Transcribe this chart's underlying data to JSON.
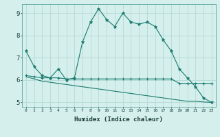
{
  "xlabel": "Humidex (Indice chaleur)",
  "x": [
    0,
    1,
    2,
    3,
    4,
    5,
    6,
    7,
    8,
    9,
    10,
    11,
    12,
    13,
    14,
    15,
    16,
    17,
    18,
    19,
    20,
    21,
    22,
    23
  ],
  "line1": [
    7.3,
    6.6,
    6.2,
    6.1,
    6.5,
    6.0,
    6.1,
    7.7,
    8.6,
    9.2,
    8.7,
    8.4,
    9.0,
    8.6,
    8.5,
    8.6,
    8.4,
    7.8,
    7.3,
    6.5,
    6.1,
    5.7,
    5.2,
    5.0
  ],
  "line2": [
    6.2,
    6.15,
    6.1,
    6.1,
    6.1,
    6.05,
    6.05,
    6.05,
    6.05,
    6.05,
    6.05,
    6.05,
    6.05,
    6.05,
    6.05,
    6.05,
    6.05,
    6.05,
    6.05,
    5.85,
    5.85,
    5.85,
    5.85,
    5.85
  ],
  "line3": [
    6.15,
    6.05,
    5.95,
    5.9,
    5.85,
    5.8,
    5.75,
    5.7,
    5.65,
    5.6,
    5.55,
    5.5,
    5.45,
    5.4,
    5.35,
    5.3,
    5.25,
    5.2,
    5.15,
    5.1,
    5.05,
    5.05,
    5.02,
    5.0
  ],
  "line_color": "#1a7a6e",
  "bg_color": "#d4efec",
  "grid_color": "#b8ddd9",
  "ylim": [
    4.8,
    9.4
  ],
  "xlim": [
    -0.5,
    23.5
  ],
  "yticks": [
    5,
    6,
    7,
    8,
    9
  ],
  "xticks": [
    0,
    1,
    2,
    3,
    4,
    5,
    6,
    7,
    8,
    9,
    10,
    11,
    12,
    13,
    14,
    15,
    16,
    17,
    18,
    19,
    20,
    21,
    22,
    23
  ]
}
